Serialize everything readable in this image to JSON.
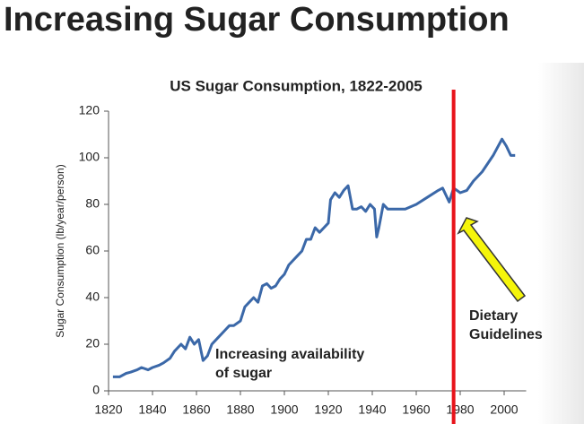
{
  "slide_title": "Increasing Sugar Consumption",
  "chart_data": {
    "type": "line",
    "title": "US Sugar Consumption, 1822-2005",
    "y_label": "Sugar Consumption (lb/year/person)",
    "x": [
      1822,
      1825,
      1828,
      1830,
      1833,
      1835,
      1838,
      1840,
      1843,
      1845,
      1848,
      1850,
      1853,
      1855,
      1857,
      1859,
      1861,
      1863,
      1865,
      1867,
      1870,
      1873,
      1875,
      1877,
      1880,
      1882,
      1884,
      1886,
      1888,
      1890,
      1892,
      1894,
      1896,
      1898,
      1900,
      1902,
      1904,
      1906,
      1908,
      1910,
      1912,
      1914,
      1916,
      1918,
      1920,
      1921,
      1923,
      1925,
      1927,
      1929,
      1931,
      1933,
      1935,
      1937,
      1939,
      1941,
      1942,
      1943,
      1944,
      1945,
      1947,
      1950,
      1955,
      1960,
      1965,
      1970,
      1972,
      1975,
      1977,
      1980,
      1983,
      1986,
      1990,
      1995,
      1999,
      2001,
      2003,
      2005
    ],
    "series": [
      {
        "name": "US sugar consumption",
        "color": "#3b68a8",
        "values": [
          6,
          6,
          7.5,
          8,
          9,
          10,
          9,
          10,
          11,
          12,
          14,
          17,
          20,
          18,
          23,
          20,
          22,
          13,
          15,
          20,
          23,
          26,
          28,
          28,
          30,
          36,
          38,
          40,
          38,
          45,
          46,
          44,
          45,
          48,
          50,
          54,
          56,
          58,
          60,
          65,
          65,
          70,
          68,
          70,
          72,
          82,
          85,
          83,
          86,
          88,
          78,
          78,
          79,
          77,
          80,
          78,
          66,
          70,
          75,
          80,
          78,
          78,
          78,
          80,
          83,
          86,
          87,
          81,
          87,
          85,
          86,
          90,
          94,
          101,
          108,
          105,
          101,
          101
        ]
      }
    ],
    "xlim": [
      1820,
      2010
    ],
    "xticks": [
      1820,
      1840,
      1860,
      1880,
      1900,
      1920,
      1940,
      1960,
      1980,
      2000
    ],
    "ylim": [
      0,
      120
    ],
    "yticks": [
      0,
      20,
      40,
      60,
      80,
      100,
      120
    ],
    "vline": {
      "x": 1977,
      "color": "#e8141b"
    },
    "annotations": [
      {
        "lines": [
          "Increasing availability",
          "of sugar"
        ]
      },
      {
        "lines": [
          "Dietary",
          "Guidelines"
        ]
      }
    ]
  }
}
